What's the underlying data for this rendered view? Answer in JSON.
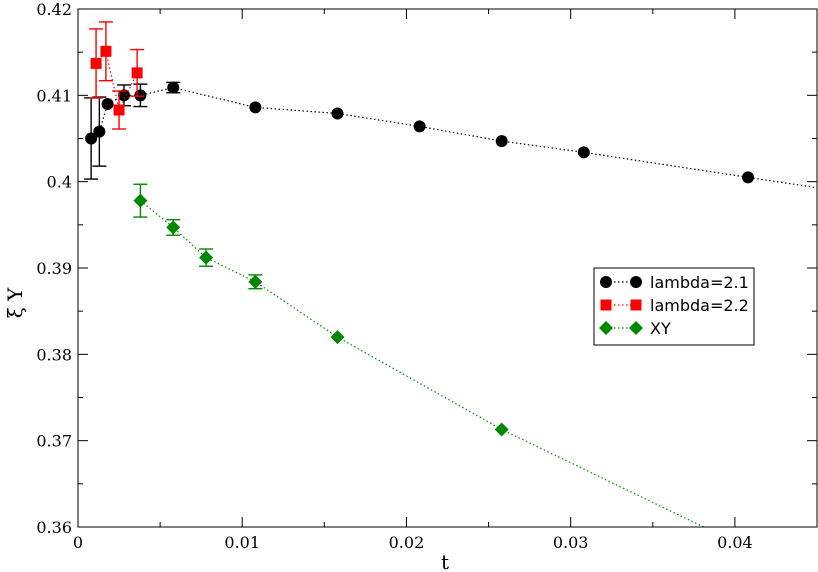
{
  "chart_data": {
    "type": "scatter",
    "title": "",
    "xlabel": "t",
    "ylabel": "ξ Y",
    "xlim": [
      0,
      0.045
    ],
    "ylim": [
      0.36,
      0.42
    ],
    "x_ticks": [
      0,
      0.01,
      0.02,
      0.03,
      0.04
    ],
    "x_tick_labels": [
      "0",
      "0.01",
      "0.02",
      "0.03",
      "0.04"
    ],
    "y_ticks": [
      0.36,
      0.37,
      0.38,
      0.39,
      0.4,
      0.41,
      0.42
    ],
    "y_tick_labels": [
      "0.36",
      "0.37",
      "0.38",
      "0.39",
      "0.4",
      "0.41",
      "0.42"
    ],
    "grid": false,
    "legend_position": "right",
    "series": [
      {
        "name": "lambda=2.1",
        "color": "#000000",
        "marker": "circle",
        "line": "dotted",
        "x": [
          0.0008,
          0.0013,
          0.0018,
          0.0028,
          0.0038,
          0.0058,
          0.0108,
          0.0158,
          0.0208,
          0.0258,
          0.0308,
          0.0408,
          0.045
        ],
        "y": [
          0.405,
          0.4058,
          0.409,
          0.41,
          0.41,
          0.4109,
          0.4086,
          0.4079,
          0.4064,
          0.4047,
          0.4034,
          0.4005,
          0.3993
        ],
        "err": [
          0.0047,
          0.004,
          0.0,
          0.0012,
          0.0013,
          0.0006,
          0.0,
          0.0,
          0.0,
          0.0,
          0.0,
          0.0,
          0.0
        ]
      },
      {
        "name": "lambda=2.2",
        "color": "#ff0000",
        "marker": "square",
        "line": "dotted",
        "x": [
          0.0011,
          0.0017,
          0.0025,
          0.0036
        ],
        "y": [
          0.4137,
          0.4151,
          0.4083,
          0.4126
        ],
        "err": [
          0.004,
          0.0034,
          0.0022,
          0.0027
        ]
      },
      {
        "name": "XY",
        "color": "#008800",
        "marker": "diamond",
        "line": "dotted",
        "x": [
          0.0038,
          0.0058,
          0.0078,
          0.0108,
          0.0158,
          0.0258,
          0.0381
        ],
        "y": [
          0.3978,
          0.3947,
          0.3912,
          0.3884,
          0.382,
          0.3713,
          0.36
        ],
        "err": [
          0.0019,
          0.0009,
          0.001,
          0.0008,
          0.0,
          0.0,
          0.0
        ]
      }
    ]
  }
}
